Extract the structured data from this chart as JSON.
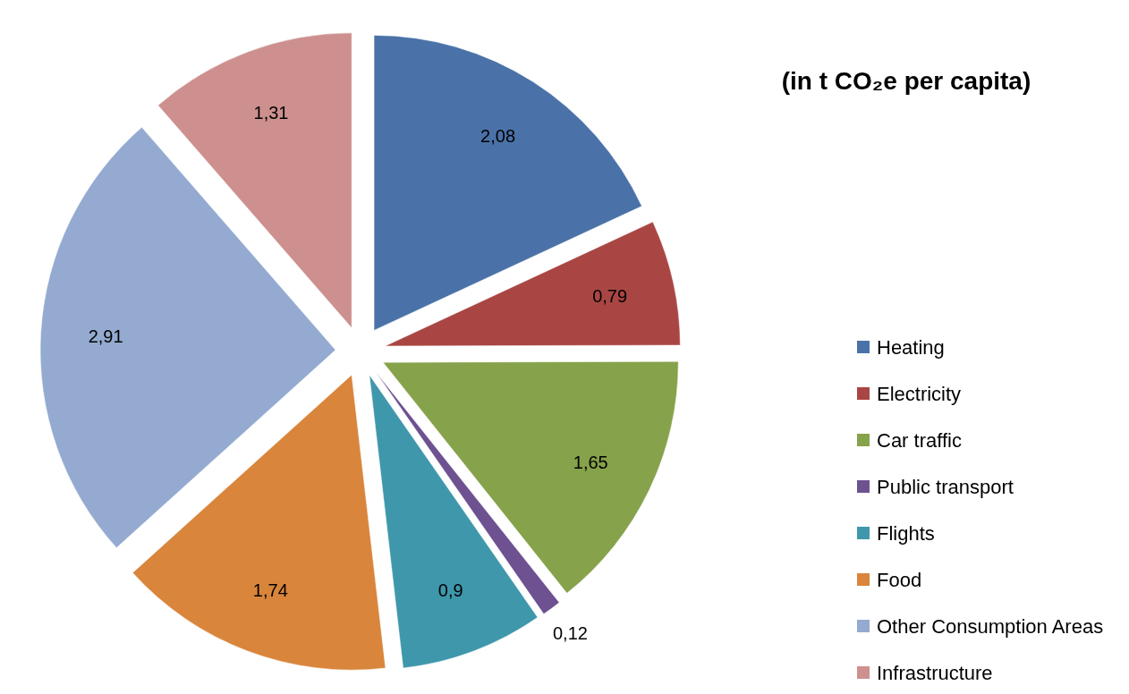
{
  "chart_data": {
    "type": "pie",
    "title": "(in t CO₂e per capita)",
    "categories": [
      "Heating",
      "Electricity",
      "Car traffic",
      "Public transport",
      "Flights",
      "Food",
      "Other Consumption Areas",
      "Infrastructure"
    ],
    "values": [
      2.08,
      0.79,
      1.65,
      0.12,
      0.9,
      1.74,
      2.91,
      1.31
    ],
    "value_labels": [
      "2,08",
      "0,79",
      "1,65",
      "0,12",
      "0,9",
      "1,74",
      "2,91",
      "1,31"
    ],
    "colors": [
      "#4a72a8",
      "#a94643",
      "#86a24b",
      "#6d5190",
      "#3f97ab",
      "#d9853c",
      "#94aad0",
      "#cd908e"
    ],
    "legend": "right"
  }
}
